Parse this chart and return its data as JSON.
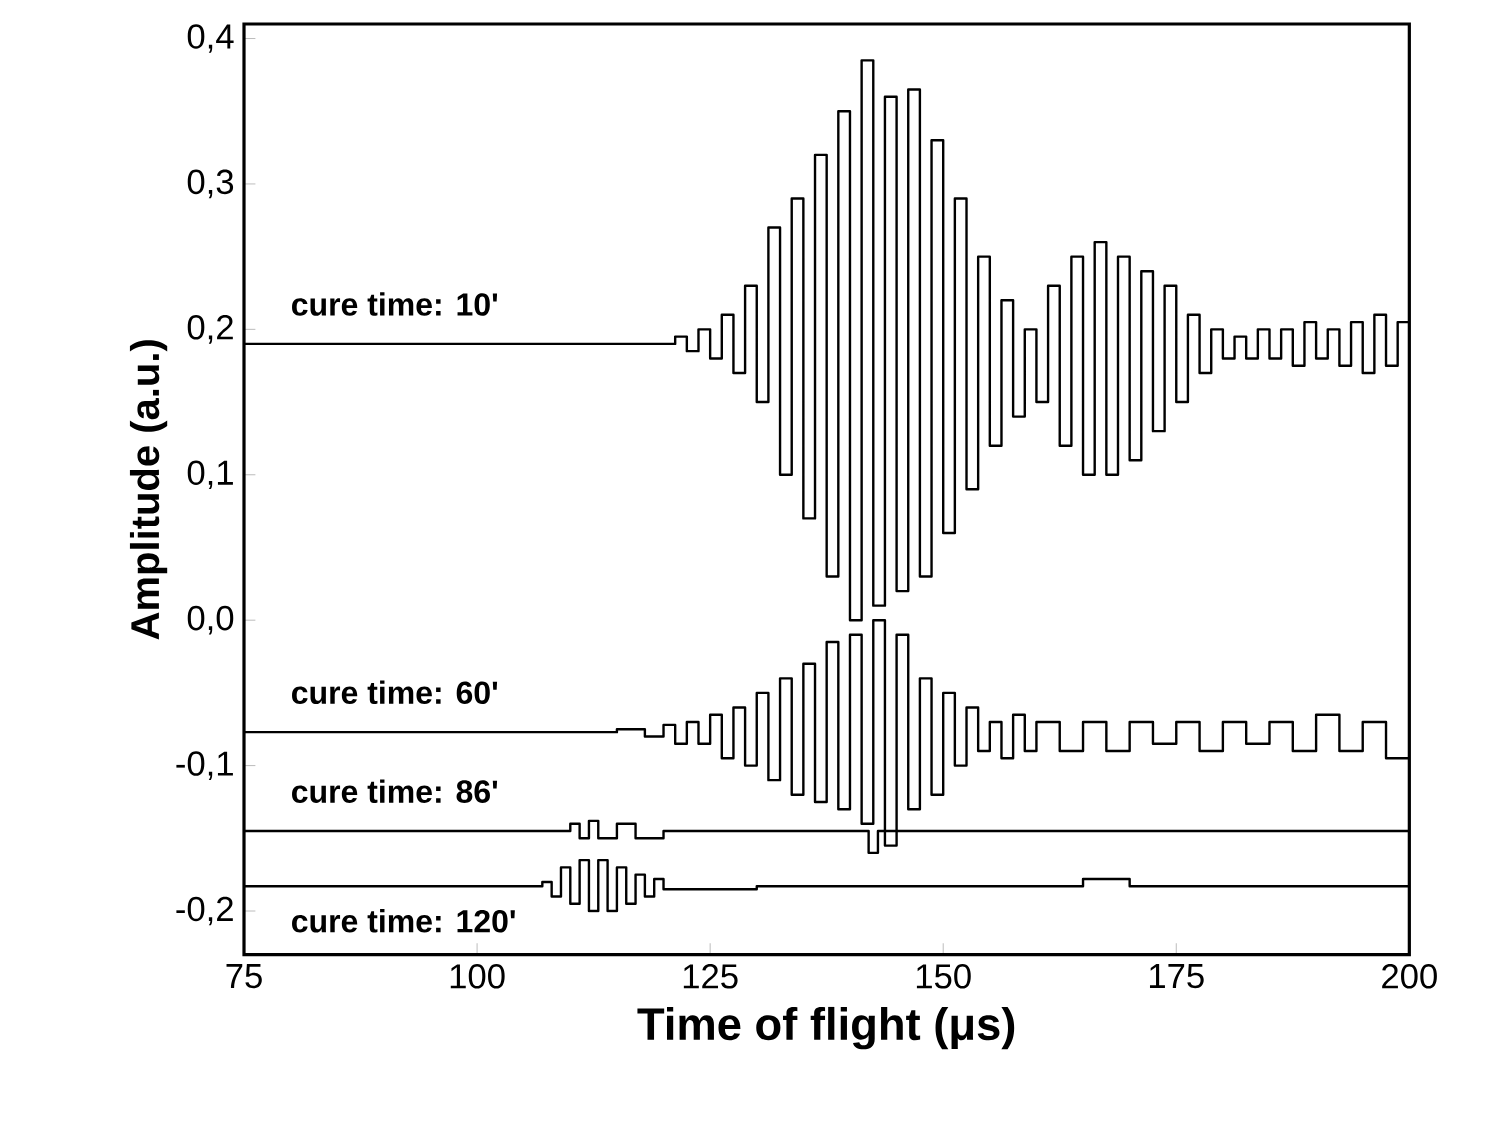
{
  "chart_data": {
    "type": "step",
    "xlabel": "Time of flight (μs)",
    "ylabel": "Amplitude (a.u.)",
    "xlim": [
      75,
      200
    ],
    "xticks": [
      75,
      100,
      125,
      150,
      175,
      200
    ],
    "ylim": [
      -0.23,
      0.41
    ],
    "yticks": [
      {
        "value": -0.2,
        "label": "-0,2"
      },
      {
        "value": -0.1,
        "label": "-0,1"
      },
      {
        "value": 0.0,
        "label": "0,0"
      },
      {
        "value": 0.1,
        "label": "0,1"
      },
      {
        "value": 0.2,
        "label": "0,2"
      },
      {
        "value": 0.3,
        "label": "0,3"
      },
      {
        "value": 0.4,
        "label": "0,4"
      }
    ],
    "grid": false,
    "legend": false,
    "marker": "none",
    "line_style": "solid",
    "series": [
      {
        "name": "cure time: 10'",
        "color": "#000000",
        "x": [
          75,
          85,
          95,
          105,
          115,
          120,
          121.25,
          122.5,
          123.75,
          125,
          126.25,
          127.5,
          128.75,
          130,
          131.25,
          132.5,
          133.75,
          135,
          136.25,
          137.5,
          138.75,
          140,
          141.25,
          142.5,
          143.75,
          145,
          146.25,
          147.5,
          148.75,
          150,
          151.25,
          152.5,
          153.75,
          155,
          156.25,
          157.5,
          158.75,
          160,
          161.25,
          162.5,
          163.75,
          165,
          166.25,
          167.5,
          168.75,
          170,
          171.25,
          172.5,
          173.75,
          175,
          176.25,
          177.5,
          178.75,
          180,
          181.25,
          182.5,
          183.75,
          185,
          186.25,
          187.5,
          188.75,
          190,
          191.25,
          192.5,
          193.75,
          195,
          196.25,
          197.5,
          198.75,
          200
        ],
        "values": [
          0.19,
          0.19,
          0.19,
          0.19,
          0.19,
          0.19,
          0.195,
          0.185,
          0.2,
          0.18,
          0.21,
          0.17,
          0.23,
          0.15,
          0.27,
          0.1,
          0.29,
          0.07,
          0.32,
          0.03,
          0.35,
          0.0,
          0.385,
          0.01,
          0.36,
          0.02,
          0.365,
          0.03,
          0.33,
          0.06,
          0.29,
          0.09,
          0.25,
          0.12,
          0.22,
          0.14,
          0.2,
          0.15,
          0.23,
          0.12,
          0.25,
          0.1,
          0.26,
          0.1,
          0.25,
          0.11,
          0.24,
          0.13,
          0.23,
          0.15,
          0.21,
          0.17,
          0.2,
          0.18,
          0.195,
          0.18,
          0.2,
          0.18,
          0.2,
          0.175,
          0.205,
          0.18,
          0.2,
          0.175,
          0.205,
          0.17,
          0.21,
          0.175,
          0.205,
          0.18
        ]
      },
      {
        "name": "cure time: 60'",
        "color": "#000000",
        "x": [
          75,
          90,
          105,
          115,
          118,
          120,
          121.25,
          122.5,
          123.75,
          125,
          126.25,
          127.5,
          128.75,
          130,
          131.25,
          132.5,
          133.75,
          135,
          136.25,
          137.5,
          138.75,
          140,
          141.25,
          142.5,
          143.75,
          145,
          146.25,
          147.5,
          148.75,
          150,
          151.25,
          152.5,
          153.75,
          155,
          156.25,
          157.5,
          158.75,
          160,
          162.5,
          165,
          167.5,
          170,
          172.5,
          175,
          177.5,
          180,
          182.5,
          185,
          187.5,
          190,
          192.5,
          195,
          197.5,
          200
        ],
        "values": [
          -0.077,
          -0.077,
          -0.077,
          -0.075,
          -0.08,
          -0.072,
          -0.085,
          -0.07,
          -0.085,
          -0.065,
          -0.095,
          -0.06,
          -0.1,
          -0.05,
          -0.11,
          -0.04,
          -0.12,
          -0.03,
          -0.125,
          -0.015,
          -0.13,
          -0.01,
          -0.14,
          0.0,
          -0.155,
          -0.01,
          -0.13,
          -0.04,
          -0.12,
          -0.05,
          -0.1,
          -0.06,
          -0.09,
          -0.07,
          -0.095,
          -0.065,
          -0.09,
          -0.07,
          -0.09,
          -0.07,
          -0.09,
          -0.07,
          -0.085,
          -0.07,
          -0.09,
          -0.07,
          -0.085,
          -0.07,
          -0.09,
          -0.065,
          -0.09,
          -0.07,
          -0.095,
          -0.075
        ]
      },
      {
        "name": "cure time: 86'",
        "color": "#000000",
        "x": [
          75,
          90,
          105,
          110,
          111,
          112,
          113,
          115,
          117,
          120,
          130,
          140,
          142,
          143,
          150,
          160,
          170,
          180,
          190,
          200
        ],
        "values": [
          -0.145,
          -0.145,
          -0.145,
          -0.14,
          -0.15,
          -0.138,
          -0.15,
          -0.14,
          -0.15,
          -0.145,
          -0.145,
          -0.145,
          -0.16,
          -0.145,
          -0.145,
          -0.145,
          -0.145,
          -0.145,
          -0.145,
          -0.145
        ]
      },
      {
        "name": "cure time: 120'",
        "color": "#000000",
        "x": [
          75,
          90,
          105,
          107,
          108,
          109,
          110,
          111,
          112,
          113,
          114,
          115,
          116,
          117,
          118,
          119,
          120,
          130,
          150,
          160,
          165,
          170,
          185,
          200
        ],
        "values": [
          -0.183,
          -0.183,
          -0.183,
          -0.18,
          -0.19,
          -0.17,
          -0.195,
          -0.165,
          -0.2,
          -0.165,
          -0.2,
          -0.17,
          -0.195,
          -0.175,
          -0.19,
          -0.178,
          -0.185,
          -0.183,
          -0.183,
          -0.183,
          -0.178,
          -0.183,
          -0.183,
          -0.185
        ]
      }
    ]
  }
}
